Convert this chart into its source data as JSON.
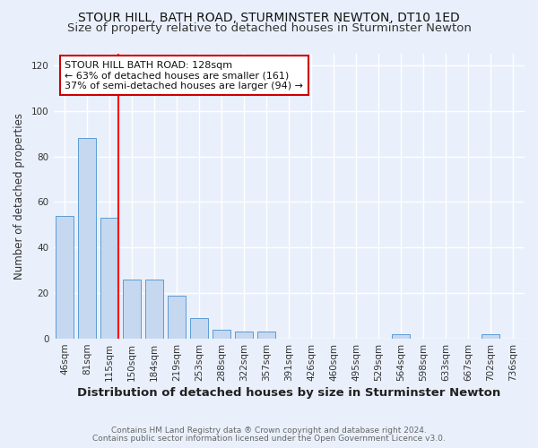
{
  "title": "STOUR HILL, BATH ROAD, STURMINSTER NEWTON, DT10 1ED",
  "subtitle": "Size of property relative to detached houses in Sturminster Newton",
  "xlabel": "Distribution of detached houses by size in Sturminster Newton",
  "ylabel": "Number of detached properties",
  "footer1": "Contains HM Land Registry data ® Crown copyright and database right 2024.",
  "footer2": "Contains public sector information licensed under the Open Government Licence v3.0.",
  "categories": [
    "46sqm",
    "81sqm",
    "115sqm",
    "150sqm",
    "184sqm",
    "219sqm",
    "253sqm",
    "288sqm",
    "322sqm",
    "357sqm",
    "391sqm",
    "426sqm",
    "460sqm",
    "495sqm",
    "529sqm",
    "564sqm",
    "598sqm",
    "633sqm",
    "667sqm",
    "702sqm",
    "736sqm"
  ],
  "values": [
    54,
    88,
    53,
    26,
    26,
    19,
    9,
    4,
    3,
    3,
    0,
    0,
    0,
    0,
    0,
    2,
    0,
    0,
    0,
    2,
    0
  ],
  "bar_color": "#c5d8f0",
  "bar_edge_color": "#5b9bd5",
  "red_line_index": 2,
  "red_line_color": "#ff0000",
  "annotation_line1": "STOUR HILL BATH ROAD: 128sqm",
  "annotation_line2": "← 63% of detached houses are smaller (161)",
  "annotation_line3": "37% of semi-detached houses are larger (94) →",
  "annotation_box_edge": "#cc0000",
  "annotation_box_face": "#ffffff",
  "ylim": [
    0,
    125
  ],
  "yticks": [
    0,
    20,
    40,
    60,
    80,
    100,
    120
  ],
  "bg_color": "#eaf0fb",
  "plot_bg_color": "#eaf0fb",
  "grid_color": "#ffffff",
  "title_fontsize": 10,
  "subtitle_fontsize": 9.5,
  "xlabel_fontsize": 9.5,
  "ylabel_fontsize": 8.5,
  "tick_fontsize": 7.5,
  "annotation_fontsize": 8,
  "footer_fontsize": 6.5
}
